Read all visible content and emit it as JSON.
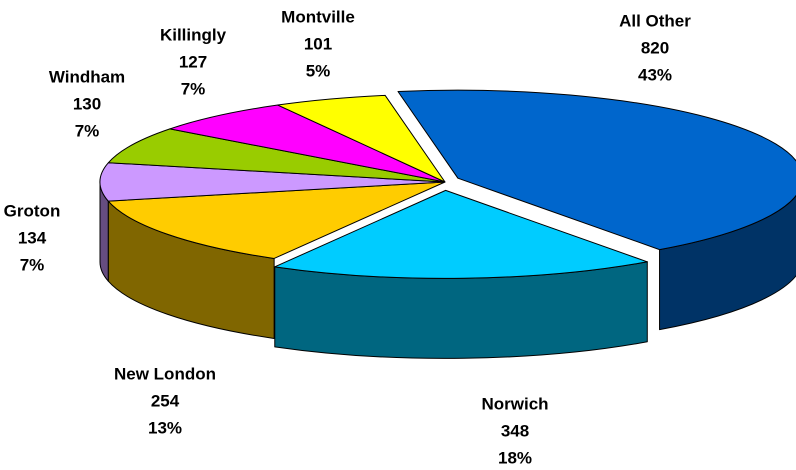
{
  "chart_data": {
    "type": "pie",
    "categories": [
      "All Other",
      "Norwich",
      "New London",
      "Groton",
      "Windham",
      "Killingly",
      "Montville"
    ],
    "values": [
      820,
      348,
      254,
      134,
      130,
      127,
      101
    ],
    "percent_labels": [
      "43%",
      "18%",
      "13%",
      "7%",
      "7%",
      "7%",
      "5%"
    ],
    "colors": [
      "#0066cc",
      "#00ccff",
      "#ffcc00",
      "#cc99ff",
      "#99cc00",
      "#ff00ff",
      "#ffff00"
    ]
  }
}
